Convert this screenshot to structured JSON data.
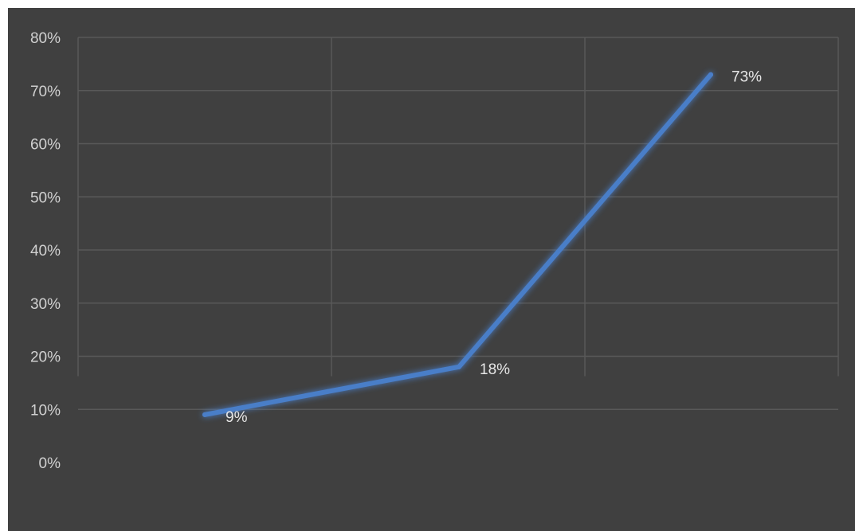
{
  "chart_data": {
    "type": "line",
    "categories": [
      "",
      "",
      ""
    ],
    "series": [
      {
        "values": [
          0.09,
          0.18,
          0.73
        ],
        "labels": [
          "9%",
          "18%",
          "73%"
        ],
        "color": "#4a7ec8"
      }
    ],
    "title": "",
    "xlabel": "",
    "ylabel": "",
    "ylim": [
      0,
      0.8
    ],
    "y_ticks": [
      {
        "value": 0.8,
        "label": "80%"
      },
      {
        "value": 0.7,
        "label": "70%"
      },
      {
        "value": 0.6,
        "label": "60%"
      },
      {
        "value": 0.5,
        "label": "50%"
      },
      {
        "value": 0.4,
        "label": "40%"
      },
      {
        "value": 0.3,
        "label": "30%"
      },
      {
        "value": 0.2,
        "label": "20%"
      },
      {
        "value": 0.1,
        "label": "10%"
      },
      {
        "value": 0.0,
        "label": "0%"
      }
    ],
    "grid": true,
    "legend": "none",
    "colors": {
      "background": "#404040",
      "gridline": "#595959",
      "line": "#4a7ec8",
      "text": "#d0d0d0"
    }
  }
}
